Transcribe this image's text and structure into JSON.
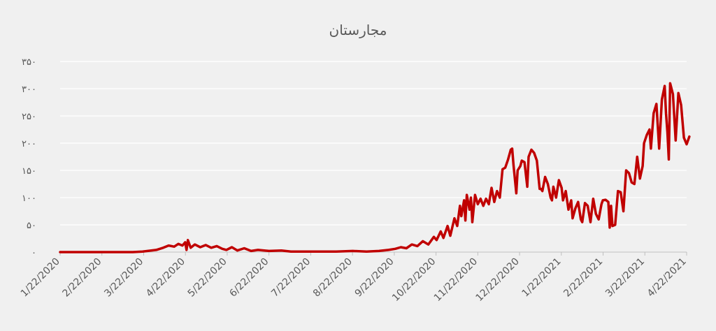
{
  "chart_data": {
    "type": "line",
    "title": "مجارستان",
    "xlabel": "",
    "ylabel": "",
    "ylim": [
      0,
      350
    ],
    "y_ticks": [
      0,
      50,
      100,
      150,
      200,
      250,
      300,
      350
    ],
    "y_tick_labels": [
      "۰",
      "۵۰",
      "۱۰۰",
      "۱۵۰",
      "۲۰۰",
      "۲۵۰",
      "۳۰۰",
      "۳۵۰"
    ],
    "x_tick_labels": [
      "1/22/2020",
      "2/22/2020",
      "3/22/2020",
      "4/22/2020",
      "5/22/2020",
      "6/22/2020",
      "7/22/2020",
      "8/22/2020",
      "9/22/2020",
      "10/22/2020",
      "11/22/2020",
      "12/22/2020",
      "1/22/2021",
      "2/22/2021",
      "3/22/2021",
      "4/22/2021"
    ],
    "xlim": [
      "2020-01-22",
      "2021-04-22"
    ],
    "grid": true,
    "legend": "none",
    "color": "#c00000",
    "series": [
      {
        "points": [
          [
            "2020-01-22",
            0
          ],
          [
            "2020-03-01",
            0
          ],
          [
            "2020-03-15",
            0
          ],
          [
            "2020-03-22",
            1
          ],
          [
            "2020-04-01",
            4
          ],
          [
            "2020-04-06",
            8
          ],
          [
            "2020-04-10",
            12
          ],
          [
            "2020-04-14",
            10
          ],
          [
            "2020-04-17",
            15
          ],
          [
            "2020-04-20",
            12
          ],
          [
            "2020-04-22",
            18
          ],
          [
            "2020-04-23",
            4
          ],
          [
            "2020-04-24",
            22
          ],
          [
            "2020-04-26",
            8
          ],
          [
            "2020-04-29",
            14
          ],
          [
            "2020-05-03",
            9
          ],
          [
            "2020-05-07",
            13
          ],
          [
            "2020-05-11",
            8
          ],
          [
            "2020-05-15",
            11
          ],
          [
            "2020-05-19",
            6
          ],
          [
            "2020-05-22",
            4
          ],
          [
            "2020-05-26",
            9
          ],
          [
            "2020-05-30",
            3
          ],
          [
            "2020-06-04",
            7
          ],
          [
            "2020-06-09",
            2
          ],
          [
            "2020-06-14",
            4
          ],
          [
            "2020-06-22",
            2
          ],
          [
            "2020-07-01",
            3
          ],
          [
            "2020-07-08",
            1
          ],
          [
            "2020-07-22",
            1
          ],
          [
            "2020-08-10",
            1
          ],
          [
            "2020-08-22",
            2
          ],
          [
            "2020-09-01",
            1
          ],
          [
            "2020-09-10",
            2
          ],
          [
            "2020-09-17",
            4
          ],
          [
            "2020-09-22",
            6
          ],
          [
            "2020-09-26",
            9
          ],
          [
            "2020-09-30",
            7
          ],
          [
            "2020-10-04",
            14
          ],
          [
            "2020-10-08",
            11
          ],
          [
            "2020-10-12",
            20
          ],
          [
            "2020-10-16",
            14
          ],
          [
            "2020-10-20",
            28
          ],
          [
            "2020-10-22",
            22
          ],
          [
            "2020-10-25",
            38
          ],
          [
            "2020-10-27",
            26
          ],
          [
            "2020-10-30",
            48
          ],
          [
            "2020-11-01",
            30
          ],
          [
            "2020-11-04",
            62
          ],
          [
            "2020-11-06",
            48
          ],
          [
            "2020-11-08",
            85
          ],
          [
            "2020-11-09",
            66
          ],
          [
            "2020-11-11",
            95
          ],
          [
            "2020-11-12",
            58
          ],
          [
            "2020-11-13",
            105
          ],
          [
            "2020-11-15",
            78
          ],
          [
            "2020-11-16",
            100
          ],
          [
            "2020-11-17",
            55
          ],
          [
            "2020-11-19",
            105
          ],
          [
            "2020-11-21",
            88
          ],
          [
            "2020-11-23",
            98
          ],
          [
            "2020-11-25",
            85
          ],
          [
            "2020-11-27",
            98
          ],
          [
            "2020-11-29",
            88
          ],
          [
            "2020-12-01",
            118
          ],
          [
            "2020-12-03",
            92
          ],
          [
            "2020-12-05",
            112
          ],
          [
            "2020-12-07",
            100
          ],
          [
            "2020-12-09",
            152
          ],
          [
            "2020-12-11",
            155
          ],
          [
            "2020-12-13",
            170
          ],
          [
            "2020-12-15",
            188
          ],
          [
            "2020-12-16",
            190
          ],
          [
            "2020-12-17",
            160
          ],
          [
            "2020-12-19",
            108
          ],
          [
            "2020-12-20",
            150
          ],
          [
            "2020-12-22",
            158
          ],
          [
            "2020-12-23",
            168
          ],
          [
            "2020-12-25",
            165
          ],
          [
            "2020-12-27",
            120
          ],
          [
            "2020-12-28",
            175
          ],
          [
            "2020-12-30",
            188
          ],
          [
            "2021-01-01",
            182
          ],
          [
            "2021-01-03",
            168
          ],
          [
            "2021-01-05",
            116
          ],
          [
            "2021-01-06",
            116
          ],
          [
            "2021-01-07",
            112
          ],
          [
            "2021-01-09",
            138
          ],
          [
            "2021-01-11",
            125
          ],
          [
            "2021-01-13",
            100
          ],
          [
            "2021-01-14",
            95
          ],
          [
            "2021-01-15",
            120
          ],
          [
            "2021-01-17",
            100
          ],
          [
            "2021-01-19",
            132
          ],
          [
            "2021-01-21",
            118
          ],
          [
            "2021-01-22",
            95
          ],
          [
            "2021-01-24",
            112
          ],
          [
            "2021-01-26",
            78
          ],
          [
            "2021-01-28",
            95
          ],
          [
            "2021-01-29",
            62
          ],
          [
            "2021-01-31",
            80
          ],
          [
            "2021-02-02",
            92
          ],
          [
            "2021-02-04",
            60
          ],
          [
            "2021-02-05",
            55
          ],
          [
            "2021-02-07",
            90
          ],
          [
            "2021-02-09",
            85
          ],
          [
            "2021-02-11",
            55
          ],
          [
            "2021-02-13",
            98
          ],
          [
            "2021-02-15",
            70
          ],
          [
            "2021-02-17",
            60
          ],
          [
            "2021-02-19",
            88
          ],
          [
            "2021-02-20",
            95
          ],
          [
            "2021-02-22",
            96
          ],
          [
            "2021-02-24",
            92
          ],
          [
            "2021-02-25",
            45
          ],
          [
            "2021-02-26",
            85
          ],
          [
            "2021-02-27",
            48
          ],
          [
            "2021-03-01",
            50
          ],
          [
            "2021-03-03",
            112
          ],
          [
            "2021-03-05",
            110
          ],
          [
            "2021-03-07",
            75
          ],
          [
            "2021-03-09",
            150
          ],
          [
            "2021-03-11",
            145
          ],
          [
            "2021-03-13",
            128
          ],
          [
            "2021-03-15",
            125
          ],
          [
            "2021-03-17",
            175
          ],
          [
            "2021-03-19",
            135
          ],
          [
            "2021-03-21",
            158
          ],
          [
            "2021-03-22",
            200
          ],
          [
            "2021-03-24",
            215
          ],
          [
            "2021-03-26",
            225
          ],
          [
            "2021-03-27",
            190
          ],
          [
            "2021-03-29",
            255
          ],
          [
            "2021-03-31",
            272
          ],
          [
            "2021-04-02",
            190
          ],
          [
            "2021-04-04",
            280
          ],
          [
            "2021-04-06",
            305
          ],
          [
            "2021-04-07",
            255
          ],
          [
            "2021-04-08",
            220
          ],
          [
            "2021-04-09",
            170
          ],
          [
            "2021-04-10",
            310
          ],
          [
            "2021-04-12",
            290
          ],
          [
            "2021-04-14",
            205
          ],
          [
            "2021-04-16",
            292
          ],
          [
            "2021-04-18",
            270
          ],
          [
            "2021-04-20",
            210
          ],
          [
            "2021-04-22",
            198
          ],
          [
            "2021-04-24",
            212
          ]
        ]
      }
    ]
  }
}
